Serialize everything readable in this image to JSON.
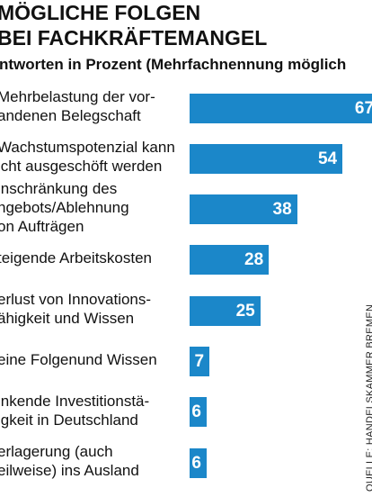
{
  "chart_data": {
    "type": "bar",
    "title": "MÖGLICHE FOLGEN\nBEI FACHKRÄFTEMANGEL",
    "subtitle": "ntworten in Prozent (Mehrfachnennung möglich",
    "categories": [
      "Mehrbelastung der vor-\nandenen Belegschaft",
      "Wachstumspotenzial kann\nicht ausgeschöft werden",
      "inschränkung des\nngebots/Ablehnung\non Aufträgen",
      "teigende Arbeitskosten",
      "erlust von Innovations-\nähigkeit und Wissen",
      "eine Folgenund Wissen",
      "inkende Investitionstä-\nigkeit in Deutschland",
      "erlagerung (auch\neilweise) ins Ausland"
    ],
    "values": [
      67,
      54,
      38,
      28,
      25,
      7,
      6,
      6
    ],
    "color": "#1b87c9",
    "source": "QUELLE: HANDELSKAMMER BREMEN"
  }
}
